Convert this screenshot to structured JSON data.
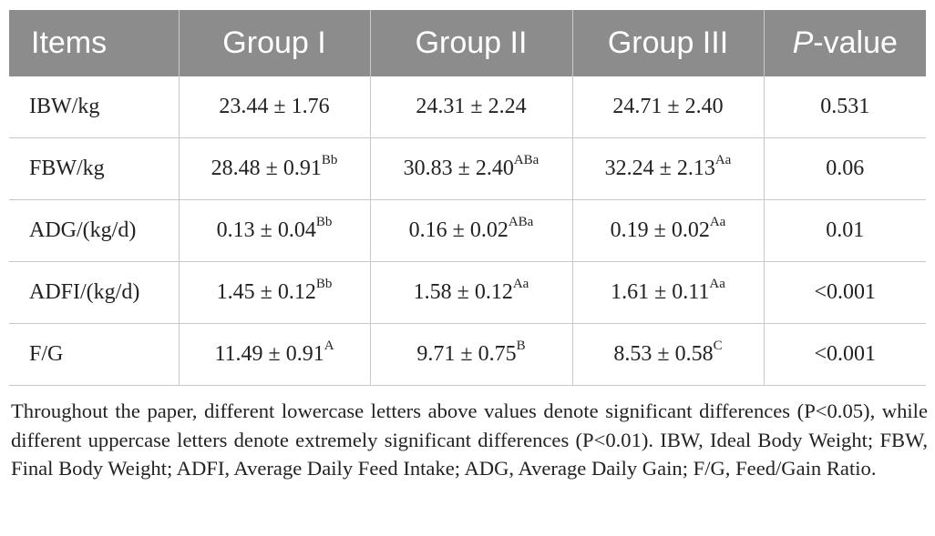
{
  "table": {
    "headers": {
      "items": "Items",
      "group1": "Group I",
      "group2": "Group II",
      "group3": "Group III",
      "pvalue_italic": "P",
      "pvalue_rest": "-value"
    },
    "rows": [
      {
        "item": "IBW/kg",
        "g1": {
          "value": "23.44 ± 1.76",
          "mark": ""
        },
        "g2": {
          "value": "24.31 ± 2.24",
          "mark": ""
        },
        "g3": {
          "value": "24.71 ± 2.40",
          "mark": ""
        },
        "p": "0.531"
      },
      {
        "item": "FBW/kg",
        "g1": {
          "value": "28.48 ± 0.91",
          "mark": "Bb"
        },
        "g2": {
          "value": "30.83 ± 2.40",
          "mark": "ABa"
        },
        "g3": {
          "value": "32.24 ± 2.13",
          "mark": "Aa"
        },
        "p": "0.06"
      },
      {
        "item": "ADG/(kg/d)",
        "g1": {
          "value": "0.13 ± 0.04",
          "mark": "Bb"
        },
        "g2": {
          "value": "0.16 ± 0.02",
          "mark": "ABa"
        },
        "g3": {
          "value": "0.19 ± 0.02",
          "mark": "Aa"
        },
        "p": "0.01"
      },
      {
        "item": "ADFI/(kg/d)",
        "g1": {
          "value": "1.45 ± 0.12",
          "mark": "Bb"
        },
        "g2": {
          "value": "1.58 ± 0.12",
          "mark": "Aa"
        },
        "g3": {
          "value": "1.61 ± 0.11",
          "mark": "Aa"
        },
        "p": "<0.001"
      },
      {
        "item": "F/G",
        "g1": {
          "value": "11.49 ± 0.91",
          "mark": "A"
        },
        "g2": {
          "value": "9.71 ± 0.75",
          "mark": "B"
        },
        "g3": {
          "value": "8.53 ± 0.58",
          "mark": "C"
        },
        "p": "<0.001"
      }
    ]
  },
  "footnote": "Throughout the paper, different lowercase letters above values denote significant differences (P<0.05), while different uppercase letters denote extremely significant differences (P<0.01). IBW, Ideal Body Weight; FBW, Final Body Weight; ADFI, Average Daily Feed Intake; ADG, Average Daily Gain; F/G, Feed/Gain Ratio.",
  "colors": {
    "header_bg": "#8c8c8c",
    "header_text": "#ffffff",
    "grid_line": "#c8c8c8",
    "body_text": "#222222"
  }
}
